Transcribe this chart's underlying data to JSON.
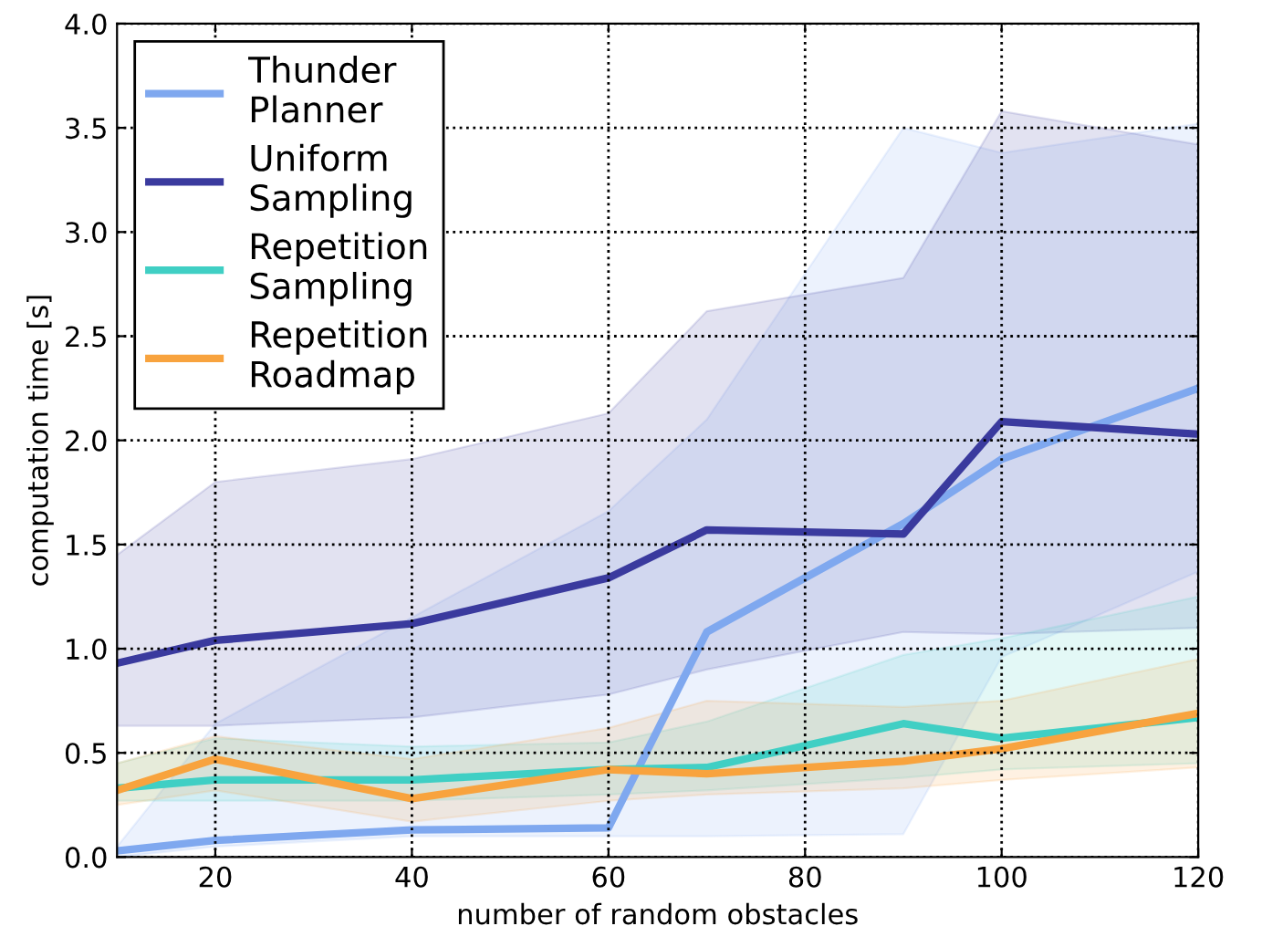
{
  "chart_data": {
    "type": "line",
    "xlabel": "number of random obstacles",
    "ylabel": "computation time [s]",
    "x": [
      10,
      20,
      40,
      60,
      70,
      90,
      100,
      120
    ],
    "series": [
      {
        "name": "Thunder\nPlanner",
        "color": "#7fa8ef",
        "values": [
          0.03,
          0.08,
          0.13,
          0.14,
          1.08,
          1.6,
          1.91,
          2.25
        ],
        "lower": [
          0.0,
          0.05,
          0.1,
          0.1,
          0.1,
          0.11,
          0.96,
          1.37
        ],
        "upper": [
          0.05,
          0.64,
          1.15,
          1.66,
          2.1,
          3.5,
          3.38,
          3.52
        ]
      },
      {
        "name": "Uniform\nSampling",
        "color": "#3a3a9e",
        "values": [
          0.93,
          1.04,
          1.12,
          1.34,
          1.57,
          1.55,
          2.09,
          2.03
        ],
        "lower": [
          0.63,
          0.63,
          0.67,
          0.78,
          0.9,
          1.08,
          1.07,
          1.1
        ],
        "upper": [
          1.45,
          1.8,
          1.91,
          2.13,
          2.62,
          2.78,
          3.58,
          3.42
        ]
      },
      {
        "name": "Repetition\nSampling",
        "color": "#40cfc4",
        "values": [
          0.33,
          0.37,
          0.37,
          0.42,
          0.43,
          0.64,
          0.57,
          0.67
        ],
        "lower": [
          0.27,
          0.27,
          0.27,
          0.3,
          0.32,
          0.38,
          0.42,
          0.45
        ],
        "upper": [
          0.45,
          0.57,
          0.53,
          0.55,
          0.65,
          0.97,
          1.05,
          1.25
        ]
      },
      {
        "name": "Repetition\nRoadmap",
        "color": "#f8a33e",
        "values": [
          0.32,
          0.47,
          0.28,
          0.42,
          0.4,
          0.46,
          0.52,
          0.69
        ],
        "lower": [
          0.25,
          0.32,
          0.17,
          0.27,
          0.3,
          0.33,
          0.37,
          0.43
        ],
        "upper": [
          0.45,
          0.58,
          0.47,
          0.62,
          0.75,
          0.72,
          0.75,
          0.95
        ]
      }
    ],
    "xlim": [
      10,
      120
    ],
    "xticks": [
      20,
      40,
      60,
      80,
      100,
      120
    ],
    "ylim": [
      0,
      4.0
    ],
    "yticks": [
      {
        "value": 0,
        "label": "0.0"
      },
      {
        "value": 0.5,
        "label": "0.5"
      },
      {
        "value": 1.0,
        "label": "1.0"
      },
      {
        "value": 1.5,
        "label": "1.5"
      },
      {
        "value": 2.0,
        "label": "2.0"
      },
      {
        "value": 2.5,
        "label": "2.5"
      },
      {
        "value": 3.0,
        "label": "3.0"
      },
      {
        "value": 3.5,
        "label": "3.5"
      },
      {
        "value": 4.0,
        "label": "4.0"
      }
    ],
    "grid": true,
    "legend": "top left",
    "marker": "none",
    "line_style": "solid"
  }
}
